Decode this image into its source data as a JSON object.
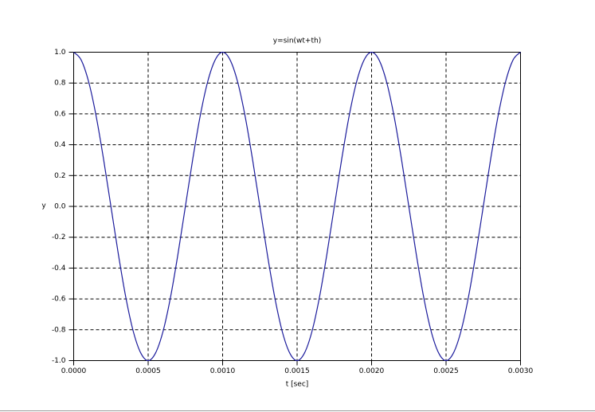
{
  "chart_data": {
    "type": "line",
    "title": "y=sin(wt+th)",
    "x_label": "t [sec]",
    "y_label": "y",
    "x": [
      0,
      5e-05,
      0.0001,
      0.00015,
      0.0002,
      0.00025,
      0.0003,
      0.00035,
      0.0004,
      0.00045,
      0.0005,
      0.00055,
      0.0006,
      0.00065,
      0.0007,
      0.00075,
      0.0008,
      0.00085,
      0.0009,
      0.00095,
      0.001,
      0.00105,
      0.0011,
      0.00115,
      0.0012,
      0.00125,
      0.0013,
      0.00135,
      0.0014,
      0.00145,
      0.0015,
      0.00155,
      0.0016,
      0.00165,
      0.0017,
      0.00175,
      0.0018,
      0.00185,
      0.0019,
      0.00195,
      0.002,
      0.00205,
      0.0021,
      0.00215,
      0.0022,
      0.00225,
      0.0023,
      0.00235,
      0.0024,
      0.00245,
      0.0025,
      0.00255,
      0.0026,
      0.00265,
      0.0027,
      0.00275,
      0.0028,
      0.00285,
      0.0029,
      0.00295,
      0.003
    ],
    "values": [
      1,
      0.95,
      0.81,
      0.59,
      0.31,
      0,
      -0.31,
      -0.59,
      -0.81,
      -0.95,
      -1,
      -0.95,
      -0.81,
      -0.59,
      -0.31,
      0,
      0.31,
      0.59,
      0.81,
      0.95,
      1,
      0.95,
      0.81,
      0.59,
      0.31,
      0,
      -0.31,
      -0.59,
      -0.81,
      -0.95,
      -1,
      -0.95,
      -0.81,
      -0.59,
      -0.31,
      0,
      0.31,
      0.59,
      0.81,
      0.95,
      1,
      0.95,
      0.81,
      0.59,
      0.31,
      0,
      -0.31,
      -0.59,
      -0.81,
      -0.95,
      -1,
      -0.95,
      -0.81,
      -0.59,
      -0.31,
      0,
      0.31,
      0.59,
      0.81,
      0.95,
      1
    ],
    "color": "#1c1c9c",
    "xlim": [
      0,
      0.003
    ],
    "xticks": [
      {
        "value": 0,
        "label": "0.0000"
      },
      {
        "value": 0.0005,
        "label": "0.0005"
      },
      {
        "value": 0.001,
        "label": "0.0010"
      },
      {
        "value": 0.0015,
        "label": "0.0015"
      },
      {
        "value": 0.002,
        "label": "0.0020"
      },
      {
        "value": 0.0025,
        "label": "0.0025"
      },
      {
        "value": 0.003,
        "label": "0.0030"
      }
    ],
    "ylim": [
      -1,
      1
    ],
    "yticks": [
      {
        "value": -1,
        "label": "-1.0"
      },
      {
        "value": -0.8,
        "label": "-0.8"
      },
      {
        "value": -0.6,
        "label": "-0.6"
      },
      {
        "value": -0.4,
        "label": "-0.4"
      },
      {
        "value": -0.2,
        "label": "-0.2"
      },
      {
        "value": 0,
        "label": "0.0"
      },
      {
        "value": 0.2,
        "label": "0.2"
      },
      {
        "value": 0.4,
        "label": "0.4"
      },
      {
        "value": 0.6,
        "label": "0.6"
      },
      {
        "value": 0.8,
        "label": "0.8"
      },
      {
        "value": 1,
        "label": "1.0"
      }
    ],
    "grid": true
  }
}
